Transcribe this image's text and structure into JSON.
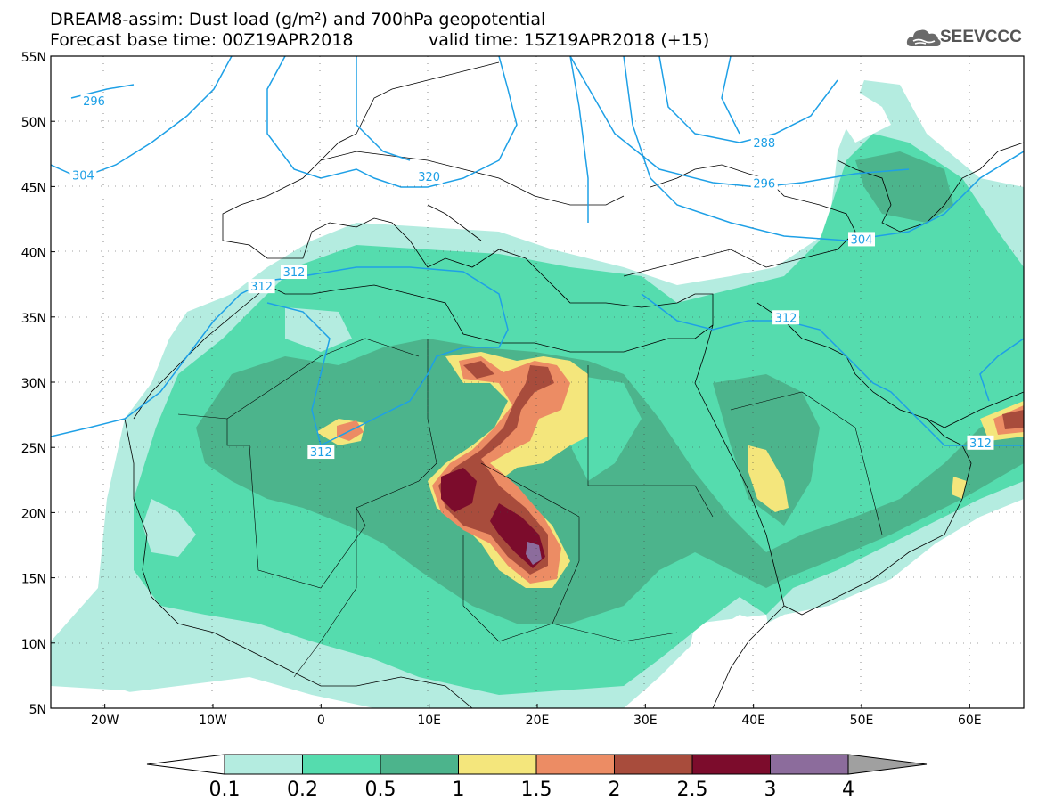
{
  "title": {
    "line1": "DREAM8-assim: Dust load (g/m²) and 700hPa geopotential",
    "line2": "Forecast base time: 00Z19APR2018",
    "line3": "valid time: 15Z19APR2018 (+15)"
  },
  "logo": {
    "text": "SEEVCCC",
    "icon": "cloud-icon"
  },
  "map": {
    "lon_range": [
      -25,
      65
    ],
    "lat_range": [
      5,
      55
    ],
    "lat_ticks": [
      "55N",
      "50N",
      "45N",
      "40N",
      "35N",
      "30N",
      "25N",
      "20N",
      "15N",
      "10N",
      "5N"
    ],
    "lon_ticks": [
      "20W",
      "10W",
      "0",
      "10E",
      "20E",
      "30E",
      "40E",
      "50E",
      "60E"
    ],
    "grid": "dotted",
    "contour_color": "#1ea0e6",
    "contour_labels": [
      {
        "text": "296",
        "lon": -21,
        "lat": 51.5
      },
      {
        "text": "304",
        "lon": -22,
        "lat": 45.8
      },
      {
        "text": "320",
        "lon": 10,
        "lat": 45.7
      },
      {
        "text": "288",
        "lon": 41,
        "lat": 48.3
      },
      {
        "text": "296",
        "lon": 41,
        "lat": 45.2
      },
      {
        "text": "304",
        "lon": 50,
        "lat": 40.9
      },
      {
        "text": "312",
        "lon": -5.5,
        "lat": 37.3
      },
      {
        "text": "312",
        "lon": -2.5,
        "lat": 38.4
      },
      {
        "text": "312",
        "lon": 0,
        "lat": 24.6
      },
      {
        "text": "312",
        "lon": 43,
        "lat": 34.9
      },
      {
        "text": "312",
        "lon": 61,
        "lat": 25.3
      }
    ]
  },
  "colorbar": {
    "labels": [
      "0.1",
      "0.2",
      "0.5",
      "1",
      "1.5",
      "2",
      "2.5",
      "3",
      "4"
    ],
    "colors": [
      "#b4ece0",
      "#55dcae",
      "#4cb48c",
      "#f4e67c",
      "#ec8c64",
      "#a84c3c",
      "#7c0c2c",
      "#8c6c9c"
    ],
    "under_color": "#ffffff",
    "over_color": "#a0a0a0"
  }
}
